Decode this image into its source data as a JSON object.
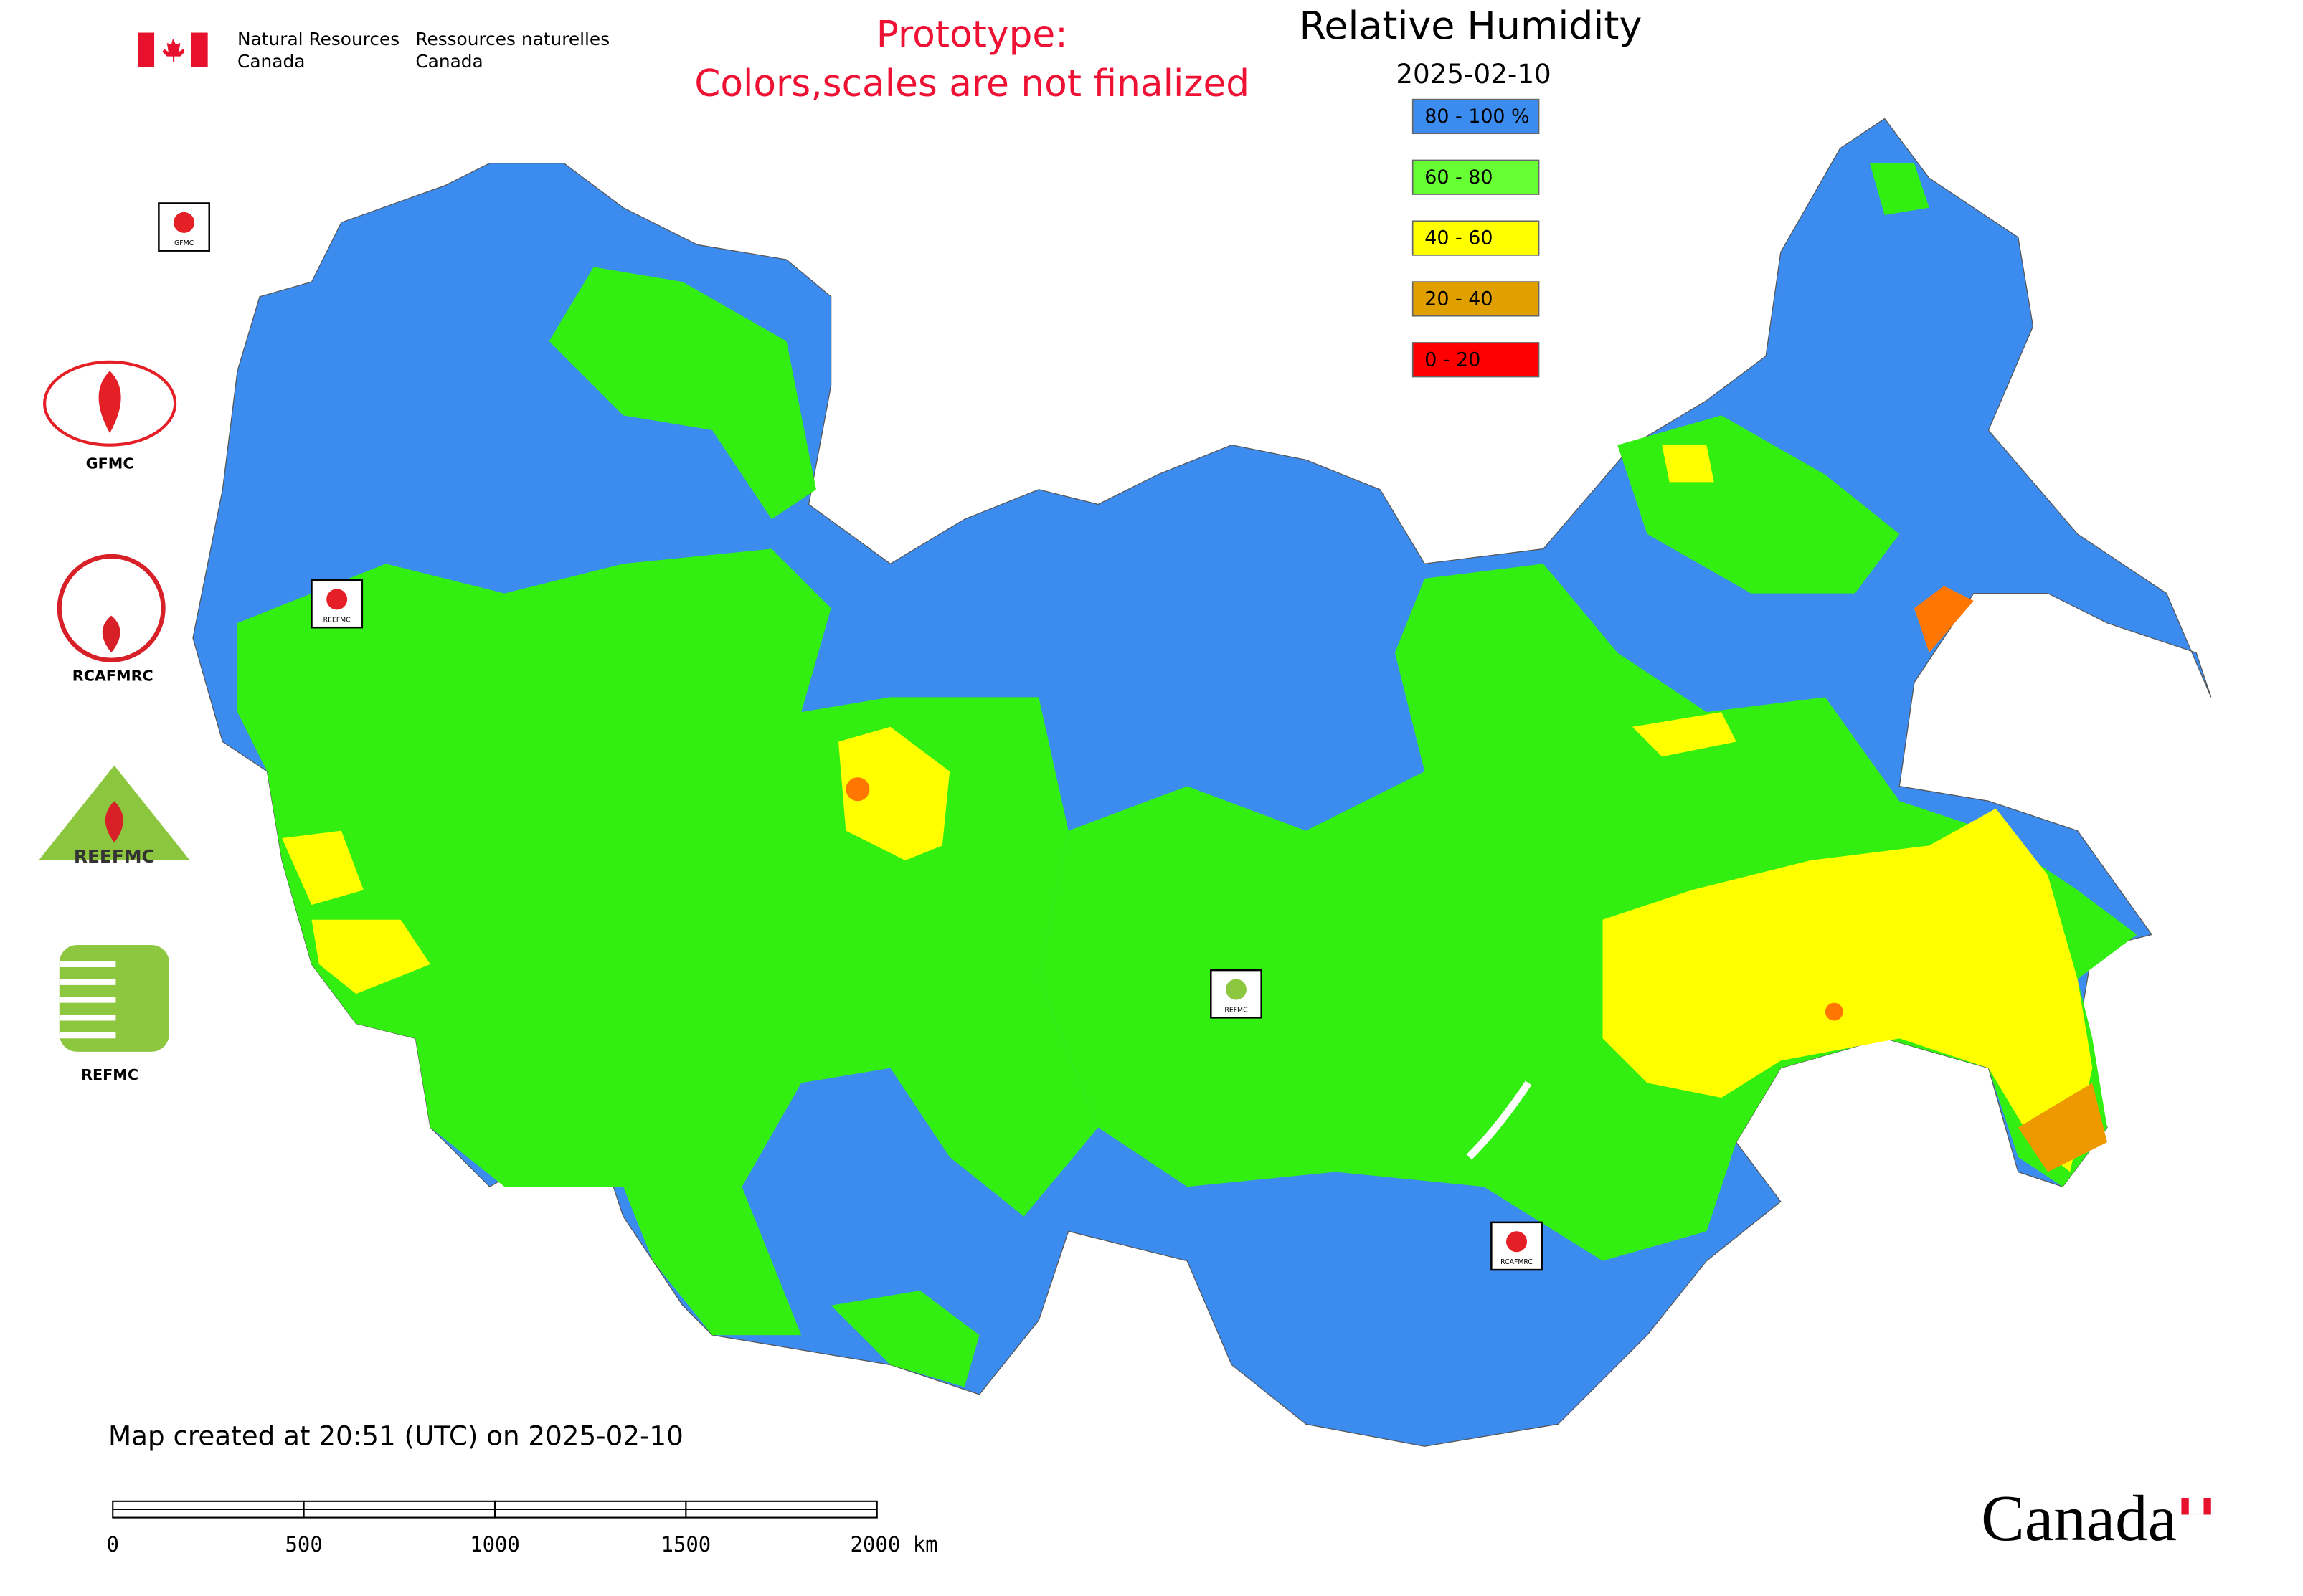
{
  "header": {
    "department_en": [
      "Natural Resources",
      "Canada"
    ],
    "department_fr": [
      "Ressources naturelles",
      "Canada"
    ],
    "notice": [
      "Prototype:",
      "Colors,scales are not finalized"
    ]
  },
  "map": {
    "title": "Relative Humidity",
    "date": "2025-02-10",
    "legend": [
      {
        "label": "80 - 100 %",
        "color": "#3c8cf0"
      },
      {
        "label": "60 - 80",
        "color": "#66ff33"
      },
      {
        "label": "40 - 60",
        "color": "#ffff00"
      },
      {
        "label": "20 - 40",
        "color": "#e0a000"
      },
      {
        "label": "0 - 20",
        "color": "#ff0000"
      }
    ],
    "station_logos": [
      "GFMC",
      "REEFMC",
      "REFMC",
      "RCAFMRC"
    ]
  },
  "side_logos": [
    "GFMC",
    "RCAFMRC",
    "REEFMC",
    "REFMC"
  ],
  "footer": {
    "created": "Map created at 20:51 (UTC) on 2025-02-10",
    "scale_bar": [
      "0",
      "500",
      "1000",
      "1500",
      "2000 km"
    ],
    "wordmark": "Canada"
  }
}
